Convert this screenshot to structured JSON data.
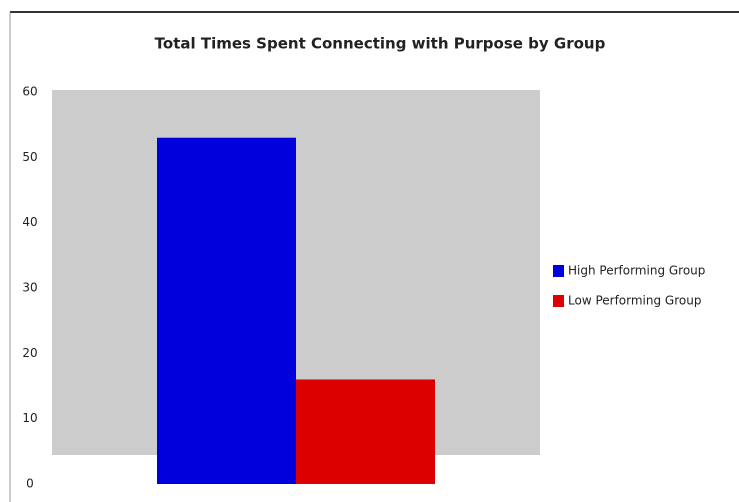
{
  "chart_data": {
    "type": "bar",
    "title": "Total Times Spent Connecting with Purpose by Group",
    "categories": [
      null
    ],
    "series": [
      {
        "name": "High Performing Group",
        "color": "#0000dd",
        "values": [
          53
        ]
      },
      {
        "name": "Low Performing Group",
        "color": "#dd0000",
        "values": [
          16
        ]
      }
    ],
    "ylim": [
      0,
      60
    ],
    "yticks": [
      0,
      10,
      20,
      30,
      40,
      50,
      60
    ],
    "legend": "right"
  }
}
